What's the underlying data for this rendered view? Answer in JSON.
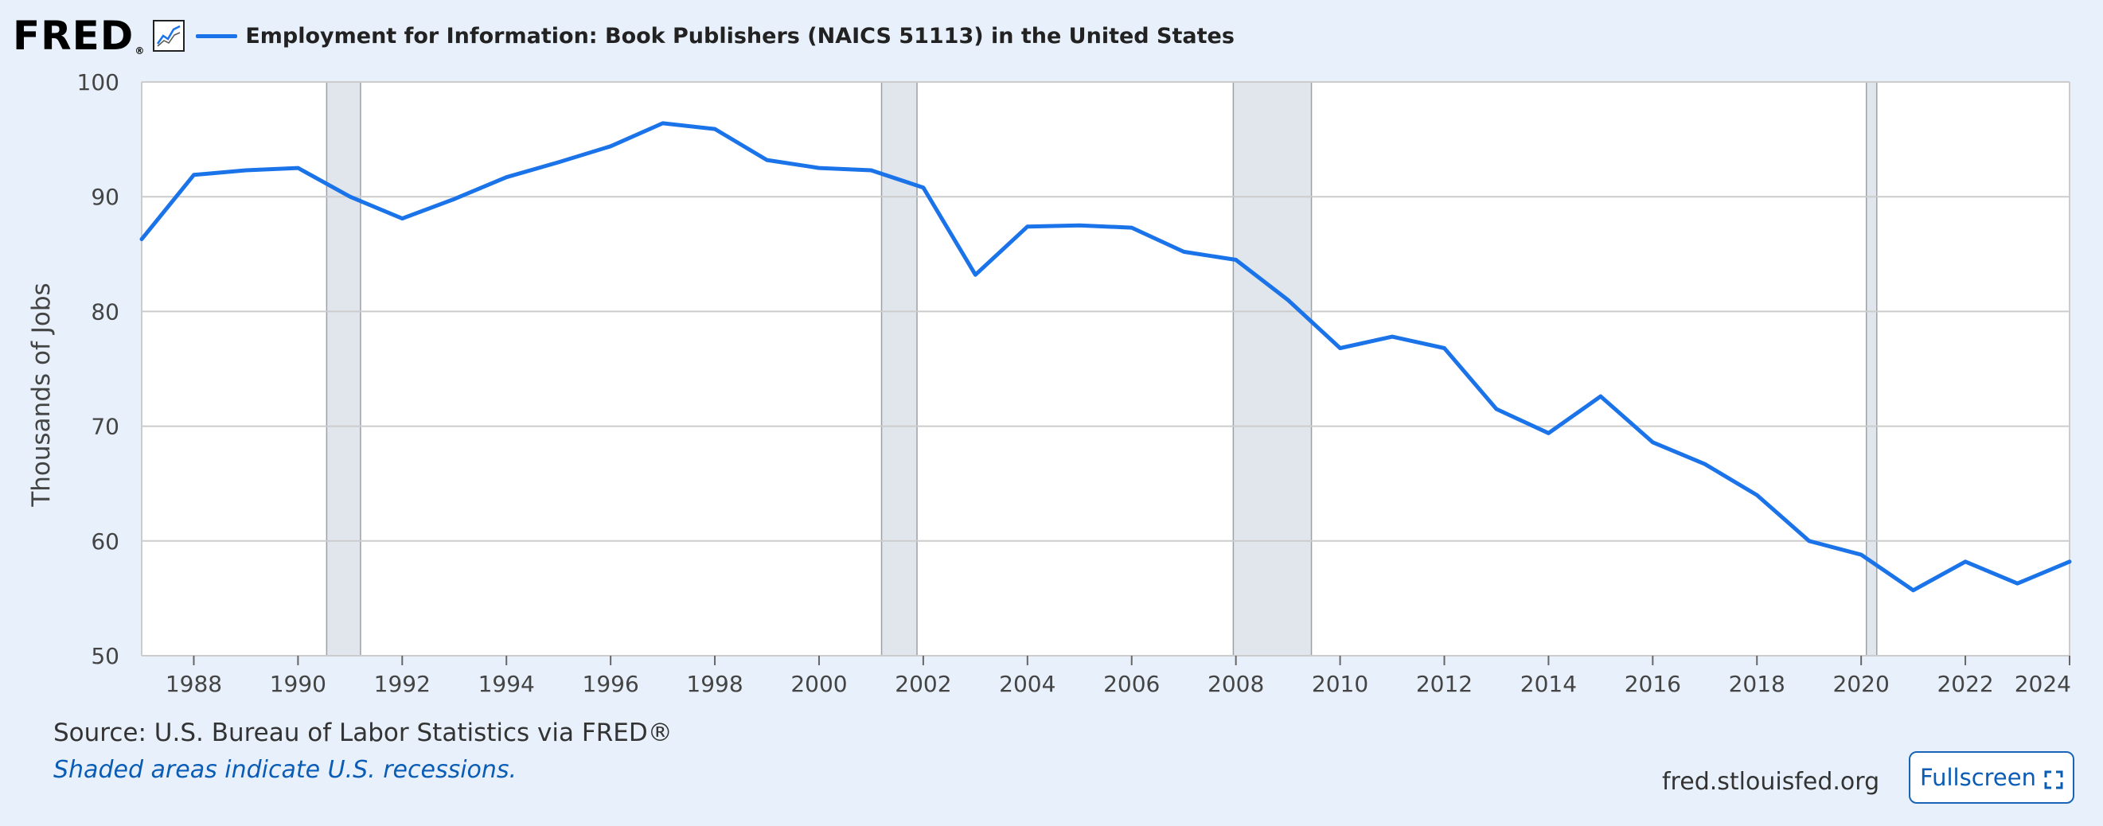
{
  "header": {
    "logo_text": "FRED",
    "logo_mark": "®",
    "title": "Employment for Information: Book Publishers (NAICS 51113) in the United States"
  },
  "chart_data": {
    "type": "line",
    "title": "Employment for Information: Book Publishers (NAICS 51113) in the United States",
    "ylabel": "Thousands of Jobs",
    "xlabel": "",
    "xlim": [
      1987,
      2024
    ],
    "ylim": [
      50,
      100
    ],
    "y_ticks": [
      50,
      60,
      70,
      80,
      90,
      100
    ],
    "x_ticks": [
      1988,
      1990,
      1992,
      1994,
      1996,
      1998,
      2000,
      2002,
      2004,
      2006,
      2008,
      2010,
      2012,
      2014,
      2016,
      2018,
      2020,
      2022,
      2024
    ],
    "grid": true,
    "series": [
      {
        "color": "#1a73e8",
        "x": [
          1987,
          1988,
          1989,
          1990,
          1991,
          1992,
          1993,
          1994,
          1995,
          1996,
          1997,
          1998,
          1999,
          2000,
          2001,
          2002,
          2003,
          2004,
          2005,
          2006,
          2007,
          2008,
          2009,
          2010,
          2011,
          2012,
          2013,
          2014,
          2015,
          2016,
          2017,
          2018,
          2019,
          2020,
          2021,
          2022,
          2023,
          2024
        ],
        "y": [
          86.3,
          91.9,
          92.3,
          92.5,
          90.0,
          88.1,
          89.8,
          91.7,
          93.0,
          94.4,
          96.4,
          95.9,
          93.2,
          92.5,
          92.3,
          90.8,
          83.2,
          87.4,
          87.5,
          87.3,
          85.2,
          84.5,
          81.0,
          76.8,
          77.8,
          76.8,
          71.5,
          69.4,
          72.6,
          68.6,
          66.7,
          64.0,
          60.0,
          58.8,
          55.7,
          58.2,
          56.3,
          58.2
        ]
      }
    ],
    "recessions": [
      [
        1990.55,
        1991.2
      ],
      [
        2001.2,
        2001.88
      ],
      [
        2007.95,
        2009.45
      ],
      [
        2020.1,
        2020.3
      ]
    ]
  },
  "colors": {
    "background": "#e8f1fb",
    "plot_background": "#ffffff",
    "line": "#1a73e8",
    "recession_shade": "#e1e6ec",
    "grid": "#cccccc"
  },
  "footer": {
    "source": "Source: U.S. Bureau of Labor Statistics via FRED®",
    "note": "Shaded areas indicate U.S. recessions.",
    "site": "fred.stlouisfed.org",
    "fullscreen_label": "Fullscreen",
    "fullscreen_icon": "expand-icon"
  }
}
